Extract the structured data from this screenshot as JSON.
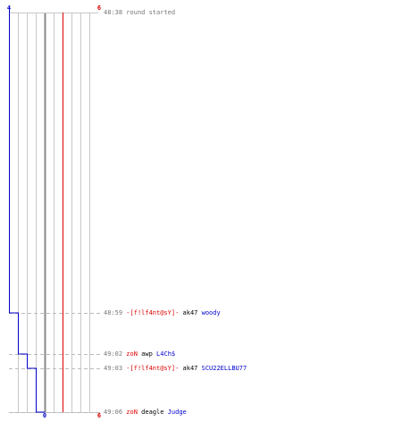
{
  "timeline": {
    "team_a_start_count": "4",
    "team_b_start_count": "6",
    "team_a_end_count": "0",
    "team_b_end_count": "6",
    "team_a_color": "#0000cc",
    "team_b_color": "#dd0000",
    "time_color": "#777777",
    "default_text_color": "#000000",
    "team_a_counts": [
      4,
      3,
      2,
      1,
      0
    ],
    "team_b_counts": [
      6,
      6,
      6,
      6,
      6
    ]
  },
  "events": [
    {
      "time": "48:38",
      "kind": "info",
      "text": "round started"
    },
    {
      "time": "48:59",
      "kind": "kill",
      "killer": "-[f!lf4nt@sY]-",
      "killer_team": "b",
      "weapon": "ak47",
      "victim": "woody",
      "victim_team": "a"
    },
    {
      "time": "49:02",
      "kind": "kill",
      "killer": "zoN",
      "killer_team": "b",
      "weapon": "awp",
      "victim": "L4Ch$",
      "victim_team": "a"
    },
    {
      "time": "49:03",
      "kind": "kill",
      "killer": "-[f!lf4nt@sY]-",
      "killer_team": "b",
      "weapon": "ak47",
      "victim": "SCU22ELLBU77",
      "victim_team": "a"
    },
    {
      "time": "49:06",
      "kind": "kill",
      "killer": "zoN",
      "killer_team": "b",
      "weapon": "deagle",
      "victim": "Judge",
      "victim_team": "a"
    }
  ]
}
